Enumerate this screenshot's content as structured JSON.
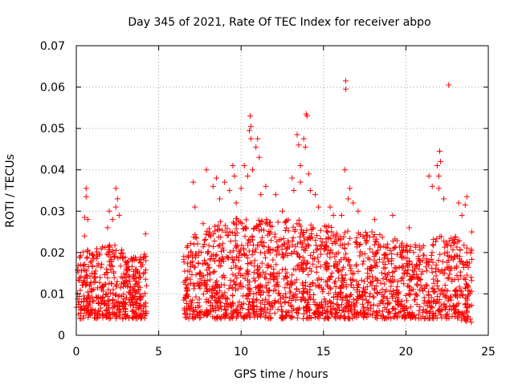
{
  "chart_data": {
    "type": "scatter",
    "title": "Day 345 of 2021, Rate Of TEC Index for receiver abpo",
    "xlabel": "GPS time / hours",
    "ylabel": "ROTI / TECUs",
    "xlim": [
      0,
      25
    ],
    "ylim": [
      0,
      0.07
    ],
    "x_ticks": [
      0,
      5,
      10,
      15,
      20,
      25
    ],
    "y_ticks": [
      0,
      0.01,
      0.02,
      0.03,
      0.04,
      0.05,
      0.06,
      0.07
    ],
    "x_tick_labels": [
      "0",
      "5",
      "10",
      "15",
      "20",
      "25"
    ],
    "y_tick_labels": [
      "0",
      "0.01",
      "0.02",
      "0.03",
      "0.04",
      "0.05",
      "0.06",
      "0.07"
    ],
    "grid": true,
    "marker": "+",
    "marker_color": "#ff0000",
    "density_profile": [
      {
        "x": 0.0,
        "min": 0.004,
        "max": 0.019
      },
      {
        "x": 0.5,
        "min": 0.004,
        "max": 0.022
      },
      {
        "x": 1.0,
        "min": 0.004,
        "max": 0.02
      },
      {
        "x": 1.5,
        "min": 0.004,
        "max": 0.022
      },
      {
        "x": 2.0,
        "min": 0.004,
        "max": 0.022
      },
      {
        "x": 2.5,
        "min": 0.004,
        "max": 0.024
      },
      {
        "x": 3.0,
        "min": 0.004,
        "max": 0.019
      },
      {
        "x": 3.5,
        "min": 0.004,
        "max": 0.019
      },
      {
        "x": 4.2,
        "min": 0.004,
        "max": 0.02
      },
      {
        "x": 6.5,
        "min": 0.004,
        "max": 0.02
      },
      {
        "x": 7.0,
        "min": 0.004,
        "max": 0.024
      },
      {
        "x": 8.0,
        "min": 0.004,
        "max": 0.026
      },
      {
        "x": 9.0,
        "min": 0.004,
        "max": 0.028
      },
      {
        "x": 10.0,
        "min": 0.004,
        "max": 0.029
      },
      {
        "x": 11.0,
        "min": 0.004,
        "max": 0.028
      },
      {
        "x": 12.0,
        "min": 0.004,
        "max": 0.028
      },
      {
        "x": 13.0,
        "min": 0.004,
        "max": 0.028
      },
      {
        "x": 14.0,
        "min": 0.004,
        "max": 0.028
      },
      {
        "x": 15.0,
        "min": 0.004,
        "max": 0.027
      },
      {
        "x": 16.0,
        "min": 0.004,
        "max": 0.026
      },
      {
        "x": 17.0,
        "min": 0.004,
        "max": 0.025
      },
      {
        "x": 18.0,
        "min": 0.004,
        "max": 0.025
      },
      {
        "x": 19.0,
        "min": 0.004,
        "max": 0.024
      },
      {
        "x": 20.0,
        "min": 0.004,
        "max": 0.022
      },
      {
        "x": 21.0,
        "min": 0.004,
        "max": 0.022
      },
      {
        "x": 22.0,
        "min": 0.004,
        "max": 0.024
      },
      {
        "x": 23.0,
        "min": 0.004,
        "max": 0.024
      },
      {
        "x": 24.0,
        "min": 0.003,
        "max": 0.021
      }
    ],
    "gaps": [
      [
        4.3,
        6.5
      ]
    ],
    "outliers": [
      {
        "x": 0.6,
        "y": 0.0355
      },
      {
        "x": 0.6,
        "y": 0.0335
      },
      {
        "x": 0.5,
        "y": 0.0285
      },
      {
        "x": 0.7,
        "y": 0.028
      },
      {
        "x": 0.5,
        "y": 0.024
      },
      {
        "x": 1.9,
        "y": 0.026
      },
      {
        "x": 2.0,
        "y": 0.03
      },
      {
        "x": 2.2,
        "y": 0.028
      },
      {
        "x": 2.4,
        "y": 0.0355
      },
      {
        "x": 2.5,
        "y": 0.033
      },
      {
        "x": 2.4,
        "y": 0.031
      },
      {
        "x": 2.6,
        "y": 0.029
      },
      {
        "x": 4.2,
        "y": 0.0245
      },
      {
        "x": 7.1,
        "y": 0.037
      },
      {
        "x": 7.2,
        "y": 0.031
      },
      {
        "x": 7.7,
        "y": 0.027
      },
      {
        "x": 7.9,
        "y": 0.04
      },
      {
        "x": 8.3,
        "y": 0.036
      },
      {
        "x": 8.5,
        "y": 0.038
      },
      {
        "x": 8.7,
        "y": 0.033
      },
      {
        "x": 9.0,
        "y": 0.037
      },
      {
        "x": 9.3,
        "y": 0.035
      },
      {
        "x": 9.5,
        "y": 0.041
      },
      {
        "x": 9.6,
        "y": 0.0385
      },
      {
        "x": 9.7,
        "y": 0.032
      },
      {
        "x": 10.0,
        "y": 0.0355
      },
      {
        "x": 10.2,
        "y": 0.041
      },
      {
        "x": 10.4,
        "y": 0.0385
      },
      {
        "x": 10.5,
        "y": 0.0495
      },
      {
        "x": 10.55,
        "y": 0.053
      },
      {
        "x": 10.6,
        "y": 0.0505
      },
      {
        "x": 10.6,
        "y": 0.0475
      },
      {
        "x": 10.7,
        "y": 0.04
      },
      {
        "x": 10.9,
        "y": 0.0455
      },
      {
        "x": 11.0,
        "y": 0.0475
      },
      {
        "x": 11.1,
        "y": 0.043
      },
      {
        "x": 11.2,
        "y": 0.034
      },
      {
        "x": 11.5,
        "y": 0.036
      },
      {
        "x": 12.1,
        "y": 0.034
      },
      {
        "x": 12.5,
        "y": 0.03
      },
      {
        "x": 13.1,
        "y": 0.038
      },
      {
        "x": 13.2,
        "y": 0.035
      },
      {
        "x": 13.4,
        "y": 0.0485
      },
      {
        "x": 13.5,
        "y": 0.046
      },
      {
        "x": 13.6,
        "y": 0.041
      },
      {
        "x": 13.6,
        "y": 0.037
      },
      {
        "x": 13.8,
        "y": 0.0475
      },
      {
        "x": 13.9,
        "y": 0.0455
      },
      {
        "x": 13.95,
        "y": 0.0535
      },
      {
        "x": 14.0,
        "y": 0.053
      },
      {
        "x": 14.1,
        "y": 0.039
      },
      {
        "x": 14.2,
        "y": 0.035
      },
      {
        "x": 14.5,
        "y": 0.034
      },
      {
        "x": 14.7,
        "y": 0.031
      },
      {
        "x": 15.4,
        "y": 0.031
      },
      {
        "x": 15.6,
        "y": 0.029
      },
      {
        "x": 16.1,
        "y": 0.029
      },
      {
        "x": 16.3,
        "y": 0.04
      },
      {
        "x": 16.35,
        "y": 0.0615
      },
      {
        "x": 16.35,
        "y": 0.0595
      },
      {
        "x": 16.5,
        "y": 0.033
      },
      {
        "x": 16.6,
        "y": 0.0355
      },
      {
        "x": 16.8,
        "y": 0.032
      },
      {
        "x": 17.1,
        "y": 0.03
      },
      {
        "x": 18.1,
        "y": 0.028
      },
      {
        "x": 19.2,
        "y": 0.029
      },
      {
        "x": 20.2,
        "y": 0.026
      },
      {
        "x": 21.4,
        "y": 0.0385
      },
      {
        "x": 21.6,
        "y": 0.036
      },
      {
        "x": 21.9,
        "y": 0.041
      },
      {
        "x": 22.0,
        "y": 0.0385
      },
      {
        "x": 22.05,
        "y": 0.0445
      },
      {
        "x": 22.1,
        "y": 0.042
      },
      {
        "x": 22.0,
        "y": 0.0355
      },
      {
        "x": 22.3,
        "y": 0.033
      },
      {
        "x": 22.6,
        "y": 0.0605
      },
      {
        "x": 23.2,
        "y": 0.032
      },
      {
        "x": 23.4,
        "y": 0.029
      },
      {
        "x": 23.6,
        "y": 0.0315
      },
      {
        "x": 23.7,
        "y": 0.0335
      },
      {
        "x": 24.0,
        "y": 0.025
      }
    ]
  }
}
